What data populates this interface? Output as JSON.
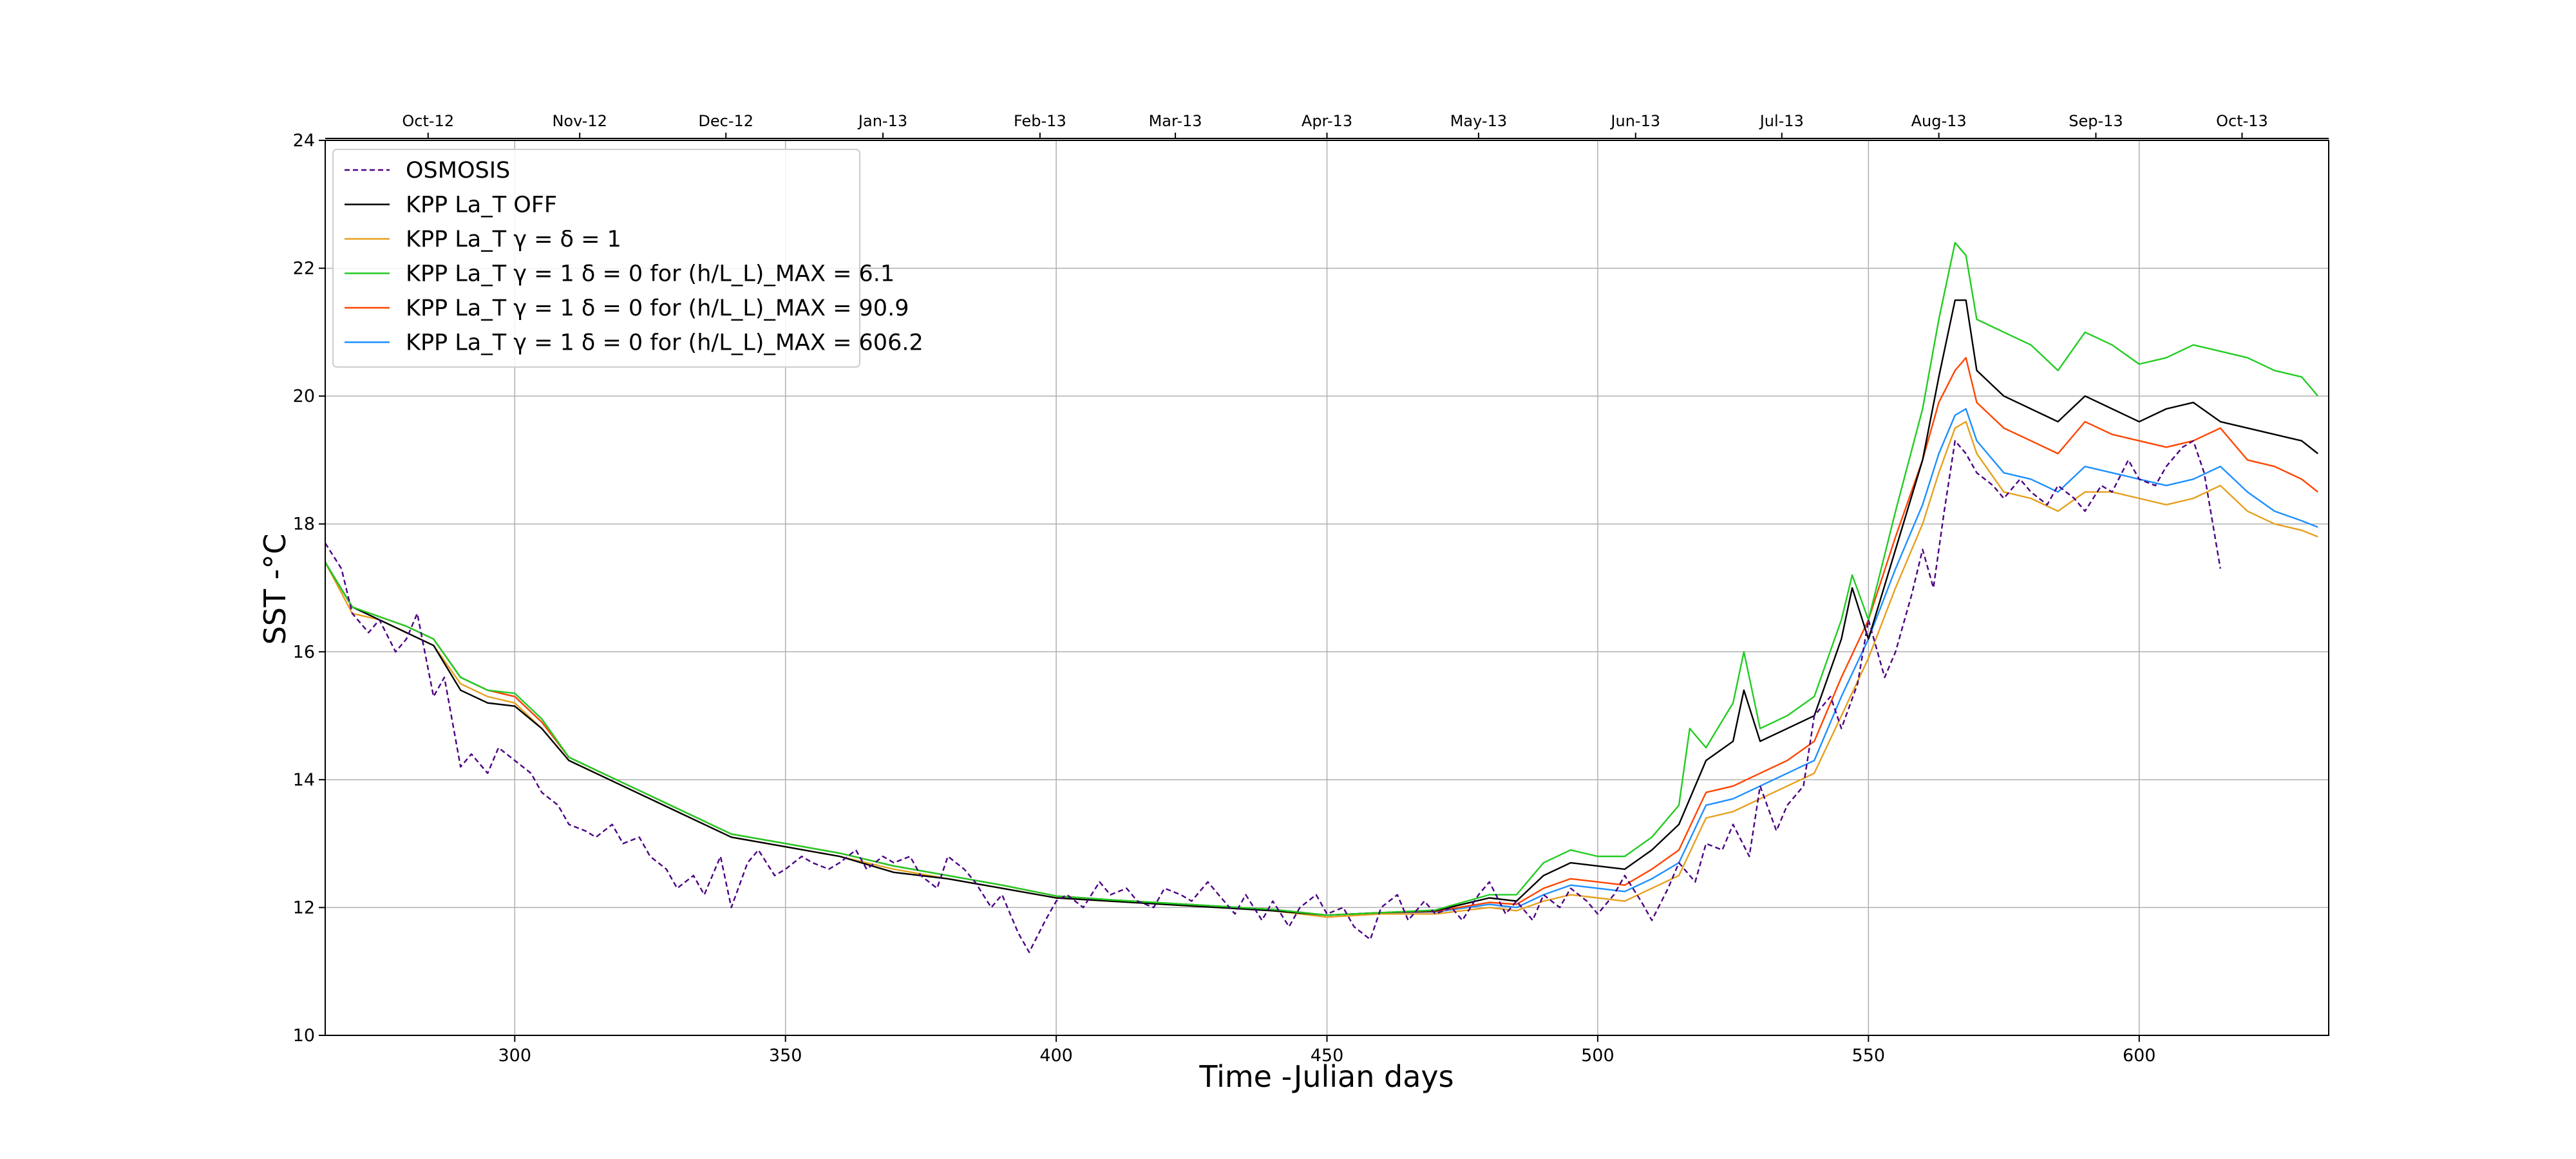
{
  "chart_data": {
    "type": "line",
    "xlabel": "Time -Julian days",
    "ylabel": "SST -°C",
    "xlim": [
      265,
      635
    ],
    "ylim": [
      10,
      24
    ],
    "grid": true,
    "legend_position": "top-left",
    "x_ticks": [
      300,
      350,
      400,
      450,
      500,
      550,
      600
    ],
    "y_ticks": [
      10,
      12,
      14,
      16,
      18,
      20,
      22,
      24
    ],
    "month_ticks": [
      {
        "label": "Oct-12",
        "x": 284
      },
      {
        "label": "Nov-12",
        "x": 312
      },
      {
        "label": "Dec-12",
        "x": 339
      },
      {
        "label": "Jan-13",
        "x": 368
      },
      {
        "label": "Feb-13",
        "x": 397
      },
      {
        "label": "Mar-13",
        "x": 422
      },
      {
        "label": "Apr-13",
        "x": 450
      },
      {
        "label": "May-13",
        "x": 478
      },
      {
        "label": "Jun-13",
        "x": 507
      },
      {
        "label": "Jul-13",
        "x": 534
      },
      {
        "label": "Aug-13",
        "x": 563
      },
      {
        "label": "Sep-13",
        "x": 592
      },
      {
        "label": "Oct-13",
        "x": 619
      }
    ],
    "legend": [
      {
        "text": "OSMOSIS",
        "color": "#4b0082",
        "dash": true
      },
      {
        "text": "KPP La_T OFF",
        "color": "#000000"
      },
      {
        "text": "KPP La_T γ = δ = 1",
        "color": "#e6a01e"
      },
      {
        "text": "KPP La_T γ = 1 δ = 0 for (h/L_L)_MAX = 6.1",
        "color": "#22cc22"
      },
      {
        "text": "KPP La_T γ = 1 δ = 0 for (h/L_L)_MAX = 90.9",
        "color": "#ff4500"
      },
      {
        "text": "KPP La_T γ = 1 δ = 0 for (h/L_L)_MAX = 606.2",
        "color": "#1e90ff"
      }
    ],
    "series": [
      {
        "name": "KPP La_T γ = δ = 1",
        "color": "#e6a01e",
        "x": [
          265,
          270,
          275,
          280,
          285,
          290,
          295,
          300,
          305,
          310,
          315,
          320,
          330,
          340,
          350,
          360,
          370,
          380,
          390,
          400,
          410,
          420,
          430,
          440,
          450,
          460,
          470,
          480,
          485,
          490,
          495,
          500,
          505,
          510,
          515,
          520,
          525,
          530,
          535,
          540,
          545,
          550,
          555,
          560,
          563,
          566,
          568,
          570,
          575,
          580,
          585,
          590,
          595,
          600,
          605,
          610,
          615,
          620,
          625,
          630,
          633
        ],
        "y": [
          17.4,
          16.6,
          16.5,
          16.3,
          16.1,
          15.5,
          15.3,
          15.2,
          14.8,
          14.3,
          14.1,
          13.9,
          13.5,
          13.1,
          12.95,
          12.8,
          12.6,
          12.45,
          12.3,
          12.15,
          12.1,
          12.05,
          12.0,
          11.95,
          11.85,
          11.9,
          11.9,
          12.0,
          11.95,
          12.1,
          12.2,
          12.15,
          12.1,
          12.3,
          12.5,
          13.4,
          13.5,
          13.7,
          13.9,
          14.1,
          15.0,
          15.9,
          17.0,
          18.0,
          18.8,
          19.5,
          19.6,
          19.1,
          18.5,
          18.4,
          18.2,
          18.5,
          18.5,
          18.4,
          18.3,
          18.4,
          18.6,
          18.2,
          18.0,
          17.9,
          17.8
        ]
      },
      {
        "name": "KPP La_T γ = 1 δ = 0 for (h/L_L)_MAX = 606.2",
        "color": "#1e90ff",
        "x": [
          265,
          270,
          275,
          280,
          285,
          290,
          295,
          300,
          305,
          310,
          315,
          320,
          330,
          340,
          350,
          360,
          370,
          380,
          390,
          400,
          410,
          420,
          430,
          440,
          450,
          460,
          470,
          480,
          485,
          490,
          495,
          500,
          505,
          510,
          515,
          520,
          525,
          530,
          535,
          540,
          545,
          550,
          555,
          560,
          563,
          566,
          568,
          570,
          575,
          580,
          585,
          590,
          595,
          600,
          605,
          610,
          615,
          620,
          625,
          630,
          633
        ],
        "y": [
          17.4,
          16.7,
          16.55,
          16.4,
          16.2,
          15.6,
          15.4,
          15.3,
          14.9,
          14.35,
          14.15,
          13.95,
          13.55,
          13.15,
          13.0,
          12.85,
          12.65,
          12.5,
          12.35,
          12.18,
          12.12,
          12.07,
          12.02,
          11.97,
          11.88,
          11.92,
          11.93,
          12.05,
          12.0,
          12.2,
          12.35,
          12.3,
          12.25,
          12.45,
          12.7,
          13.6,
          13.7,
          13.9,
          14.1,
          14.3,
          15.3,
          16.2,
          17.3,
          18.3,
          19.1,
          19.7,
          19.8,
          19.3,
          18.8,
          18.7,
          18.5,
          18.9,
          18.8,
          18.7,
          18.6,
          18.7,
          18.9,
          18.5,
          18.2,
          18.05,
          17.95
        ]
      },
      {
        "name": "KPP La_T γ = 1 δ = 0 for (h/L_L)_MAX = 90.9",
        "color": "#ff4500",
        "x": [
          265,
          270,
          275,
          280,
          285,
          290,
          295,
          300,
          305,
          310,
          315,
          320,
          330,
          340,
          350,
          360,
          370,
          380,
          390,
          400,
          410,
          420,
          430,
          440,
          450,
          460,
          470,
          480,
          485,
          490,
          495,
          500,
          505,
          510,
          515,
          520,
          525,
          530,
          535,
          540,
          545,
          550,
          555,
          560,
          563,
          566,
          568,
          570,
          575,
          580,
          585,
          590,
          595,
          600,
          605,
          610,
          615,
          620,
          625,
          630,
          633
        ],
        "y": [
          17.4,
          16.7,
          16.55,
          16.4,
          16.2,
          15.6,
          15.4,
          15.3,
          14.9,
          14.35,
          14.15,
          13.95,
          13.55,
          13.15,
          13.0,
          12.85,
          12.65,
          12.5,
          12.35,
          12.18,
          12.12,
          12.07,
          12.02,
          11.97,
          11.88,
          11.92,
          11.94,
          12.08,
          12.05,
          12.3,
          12.45,
          12.4,
          12.35,
          12.6,
          12.9,
          13.8,
          13.9,
          14.1,
          14.3,
          14.6,
          15.6,
          16.5,
          17.8,
          19.0,
          19.9,
          20.4,
          20.6,
          19.9,
          19.5,
          19.3,
          19.1,
          19.6,
          19.4,
          19.3,
          19.2,
          19.3,
          19.5,
          19.0,
          18.9,
          18.7,
          18.5
        ]
      },
      {
        "name": "KPP La_T OFF",
        "color": "#000000",
        "x": [
          265,
          270,
          275,
          280,
          285,
          290,
          295,
          300,
          305,
          310,
          315,
          320,
          330,
          340,
          350,
          360,
          370,
          380,
          390,
          400,
          410,
          420,
          430,
          440,
          450,
          460,
          470,
          480,
          485,
          490,
          495,
          500,
          505,
          510,
          515,
          520,
          525,
          527,
          530,
          535,
          540,
          545,
          547,
          550,
          555,
          560,
          563,
          566,
          568,
          570,
          575,
          580,
          585,
          590,
          595,
          600,
          605,
          610,
          615,
          620,
          625,
          630,
          633
        ],
        "y": [
          17.4,
          16.7,
          16.5,
          16.3,
          16.1,
          15.4,
          15.2,
          15.15,
          14.8,
          14.3,
          14.1,
          13.9,
          13.5,
          13.1,
          12.95,
          12.8,
          12.55,
          12.45,
          12.3,
          12.15,
          12.1,
          12.05,
          12.0,
          11.95,
          11.88,
          11.92,
          11.95,
          12.15,
          12.1,
          12.5,
          12.7,
          12.65,
          12.6,
          12.9,
          13.3,
          14.3,
          14.6,
          15.4,
          14.6,
          14.8,
          15.0,
          16.2,
          17.0,
          16.2,
          17.6,
          19.0,
          20.3,
          21.5,
          21.5,
          20.4,
          20.0,
          19.8,
          19.6,
          20.0,
          19.8,
          19.6,
          19.8,
          19.9,
          19.6,
          19.5,
          19.4,
          19.3,
          19.1
        ]
      },
      {
        "name": "KPP La_T γ = 1 δ = 0 for (h/L_L)_MAX = 6.1",
        "color": "#22cc22",
        "x": [
          265,
          270,
          275,
          280,
          285,
          290,
          295,
          300,
          305,
          310,
          315,
          320,
          330,
          340,
          350,
          360,
          370,
          380,
          390,
          400,
          410,
          420,
          430,
          440,
          450,
          460,
          470,
          480,
          485,
          490,
          495,
          500,
          505,
          510,
          515,
          517,
          520,
          525,
          527,
          530,
          535,
          540,
          545,
          547,
          550,
          555,
          560,
          563,
          566,
          568,
          570,
          575,
          580,
          585,
          590,
          595,
          600,
          605,
          610,
          615,
          620,
          625,
          630,
          633
        ],
        "y": [
          17.4,
          16.7,
          16.55,
          16.4,
          16.2,
          15.6,
          15.4,
          15.35,
          14.95,
          14.35,
          14.15,
          13.95,
          13.55,
          13.15,
          13.0,
          12.85,
          12.65,
          12.5,
          12.35,
          12.18,
          12.12,
          12.07,
          12.02,
          11.97,
          11.88,
          11.92,
          11.96,
          12.2,
          12.2,
          12.7,
          12.9,
          12.8,
          12.8,
          13.1,
          13.6,
          14.8,
          14.5,
          15.2,
          16.0,
          14.8,
          15.0,
          15.3,
          16.5,
          17.2,
          16.5,
          18.2,
          19.8,
          21.2,
          22.4,
          22.2,
          21.2,
          21.0,
          20.8,
          20.4,
          21.0,
          20.8,
          20.5,
          20.6,
          20.8,
          20.7,
          20.6,
          20.4,
          20.3,
          20.0
        ]
      },
      {
        "name": "OSMOSIS",
        "color": "#4b0082",
        "dash": true,
        "x": [
          265,
          268,
          270,
          273,
          275,
          278,
          280,
          282,
          285,
          287,
          290,
          292,
          295,
          297,
          300,
          303,
          305,
          308,
          310,
          313,
          315,
          318,
          320,
          323,
          325,
          328,
          330,
          333,
          335,
          338,
          340,
          343,
          345,
          348,
          350,
          353,
          355,
          358,
          360,
          363,
          365,
          368,
          370,
          373,
          375,
          378,
          380,
          383,
          385,
          388,
          390,
          393,
          395,
          398,
          400,
          402,
          405,
          408,
          410,
          413,
          415,
          418,
          420,
          423,
          425,
          428,
          430,
          433,
          435,
          438,
          440,
          443,
          445,
          448,
          450,
          453,
          455,
          458,
          460,
          463,
          465,
          468,
          470,
          473,
          475,
          478,
          480,
          483,
          485,
          488,
          490,
          493,
          495,
          498,
          500,
          503,
          505,
          508,
          510,
          513,
          515,
          518,
          520,
          523,
          525,
          528,
          530,
          533,
          535,
          538,
          540,
          543,
          545,
          548,
          550,
          553,
          555,
          558,
          560,
          562,
          564,
          566,
          568,
          570,
          573,
          575,
          578,
          580,
          583,
          585,
          588,
          590,
          593,
          595,
          598,
          600,
          603,
          605,
          608,
          610,
          612,
          615
        ],
        "y": [
          17.7,
          17.3,
          16.6,
          16.3,
          16.5,
          16.0,
          16.2,
          16.6,
          15.3,
          15.6,
          14.2,
          14.4,
          14.1,
          14.5,
          14.3,
          14.1,
          13.8,
          13.6,
          13.3,
          13.2,
          13.1,
          13.3,
          13.0,
          13.1,
          12.8,
          12.6,
          12.3,
          12.5,
          12.2,
          12.8,
          12.0,
          12.7,
          12.9,
          12.5,
          12.6,
          12.8,
          12.7,
          12.6,
          12.7,
          12.9,
          12.6,
          12.8,
          12.7,
          12.8,
          12.5,
          12.3,
          12.8,
          12.6,
          12.4,
          12.0,
          12.2,
          11.6,
          11.3,
          11.8,
          12.1,
          12.2,
          12.0,
          12.4,
          12.2,
          12.3,
          12.1,
          12.0,
          12.3,
          12.2,
          12.1,
          12.4,
          12.2,
          11.9,
          12.2,
          11.8,
          12.1,
          11.7,
          12.0,
          12.2,
          11.9,
          12.0,
          11.7,
          11.5,
          12.0,
          12.2,
          11.8,
          12.1,
          11.9,
          12.0,
          11.8,
          12.2,
          12.4,
          11.9,
          12.1,
          11.8,
          12.2,
          12.0,
          12.3,
          12.1,
          11.9,
          12.2,
          12.5,
          12.1,
          11.8,
          12.3,
          12.7,
          12.4,
          13.0,
          12.9,
          13.3,
          12.8,
          13.9,
          13.2,
          13.6,
          13.9,
          15.0,
          15.3,
          14.8,
          15.5,
          16.5,
          15.6,
          16.0,
          16.9,
          17.6,
          17.0,
          18.2,
          19.3,
          19.1,
          18.8,
          18.6,
          18.4,
          18.7,
          18.5,
          18.3,
          18.6,
          18.4,
          18.2,
          18.6,
          18.5,
          19.0,
          18.7,
          18.6,
          18.9,
          19.2,
          19.3,
          18.8,
          17.3
        ]
      }
    ]
  }
}
